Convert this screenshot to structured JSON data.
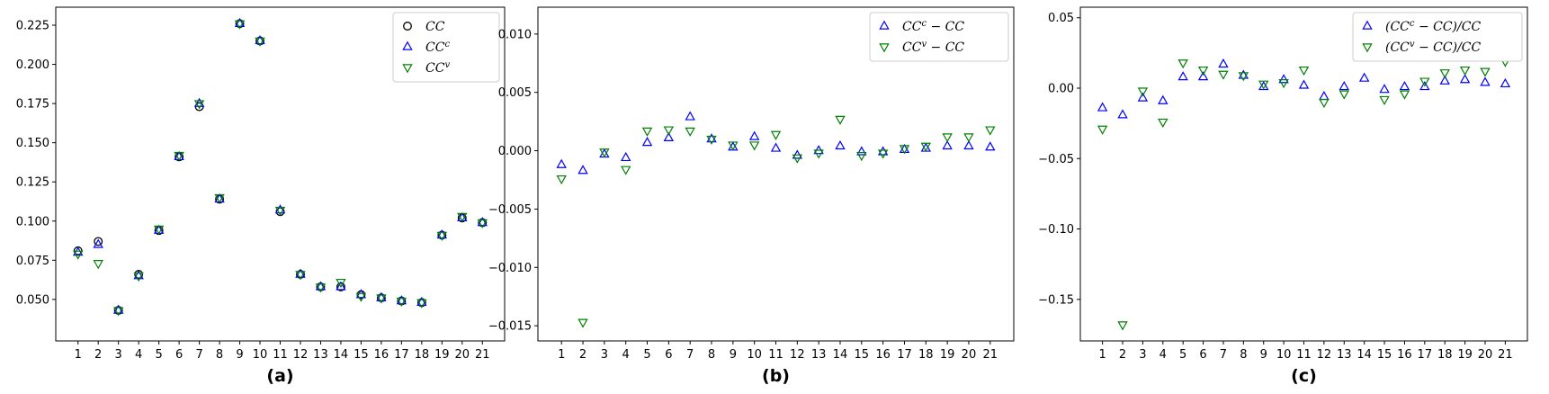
{
  "colors": {
    "cc": "#000000",
    "ccc": "#0000ff",
    "ccv": "#008000"
  },
  "chart_data": [
    {
      "type": "scatter",
      "panel_label": "(a)",
      "x": [
        1,
        2,
        3,
        4,
        5,
        6,
        7,
        8,
        9,
        10,
        11,
        12,
        13,
        14,
        15,
        16,
        17,
        18,
        19,
        20,
        21
      ],
      "xticks": [
        "1",
        "2",
        "3",
        "4",
        "5",
        "6",
        "7",
        "8",
        "9",
        "10",
        "11",
        "12",
        "13",
        "14",
        "15",
        "16",
        "17",
        "18",
        "19",
        "20",
        "21"
      ],
      "xlim": [
        -0.1,
        22.1
      ],
      "ylim": [
        0.0235,
        0.2365
      ],
      "yticks": [
        0.05,
        0.075,
        0.1,
        0.125,
        0.15,
        0.175,
        0.2,
        0.225
      ],
      "ytick_labels": [
        "0.050",
        "0.075",
        "0.100",
        "0.125",
        "0.150",
        "0.175",
        "0.200",
        "0.225"
      ],
      "legend_position": "top-right",
      "series": [
        {
          "name": "CC",
          "marker": "circle",
          "color": "#000000",
          "values": [
            0.081,
            0.087,
            0.043,
            0.066,
            0.094,
            0.141,
            0.173,
            0.114,
            0.226,
            0.215,
            0.106,
            0.066,
            0.058,
            0.058,
            0.053,
            0.051,
            0.049,
            0.048,
            0.091,
            0.102,
            0.099
          ]
        },
        {
          "name": "CC^c",
          "marker": "triangle-up",
          "color": "#0000ff",
          "values": [
            0.08,
            0.085,
            0.043,
            0.065,
            0.094,
            0.141,
            0.175,
            0.114,
            0.226,
            0.215,
            0.107,
            0.066,
            0.058,
            0.058,
            0.053,
            0.051,
            0.049,
            0.048,
            0.091,
            0.102,
            0.099
          ]
        },
        {
          "name": "CC^v",
          "marker": "triangle-down",
          "color": "#008000",
          "values": [
            0.079,
            0.073,
            0.043,
            0.065,
            0.095,
            0.142,
            0.175,
            0.115,
            0.226,
            0.215,
            0.107,
            0.066,
            0.058,
            0.061,
            0.052,
            0.051,
            0.049,
            0.048,
            0.091,
            0.103,
            0.099
          ]
        }
      ]
    },
    {
      "type": "scatter",
      "panel_label": "(b)",
      "x": [
        1,
        2,
        3,
        4,
        5,
        6,
        7,
        8,
        9,
        10,
        11,
        12,
        13,
        14,
        15,
        16,
        17,
        18,
        19,
        20,
        21
      ],
      "xticks": [
        "1",
        "2",
        "3",
        "4",
        "5",
        "6",
        "7",
        "8",
        "9",
        "10",
        "11",
        "12",
        "13",
        "14",
        "15",
        "16",
        "17",
        "18",
        "19",
        "20",
        "21"
      ],
      "xlim": [
        -0.1,
        22.1
      ],
      "ylim": [
        -0.0163,
        0.0123
      ],
      "yticks": [
        -0.015,
        -0.01,
        -0.005,
        0.0,
        0.005,
        0.01
      ],
      "ytick_labels": [
        "−0.015",
        "−0.010",
        "−0.005",
        "0.000",
        "0.005",
        "0.010"
      ],
      "legend_position": "top-right",
      "series": [
        {
          "name": "CC^c − CC",
          "marker": "triangle-up",
          "color": "#0000ff",
          "values": [
            -0.0012,
            -0.0017,
            -0.0003,
            -0.0006,
            0.0007,
            0.0011,
            0.0029,
            0.001,
            0.0003,
            0.0012,
            0.0002,
            -0.0004,
            0.0,
            0.0004,
            -0.0001,
            -0.0001,
            0.0001,
            0.0002,
            0.0004,
            0.0004,
            0.0003
          ]
        },
        {
          "name": "CC^v − CC",
          "marker": "triangle-down",
          "color": "#008000",
          "values": [
            -0.0024,
            -0.0147,
            -0.0001,
            -0.0016,
            0.0017,
            0.0018,
            0.0017,
            0.001,
            0.0005,
            0.0005,
            0.0014,
            -0.0006,
            -0.0002,
            0.0027,
            -0.0004,
            -0.0002,
            0.0002,
            0.0004,
            0.0012,
            0.0012,
            0.0018
          ]
        }
      ]
    },
    {
      "type": "scatter",
      "panel_label": "(c)",
      "x": [
        1,
        2,
        3,
        4,
        5,
        6,
        7,
        8,
        9,
        10,
        11,
        12,
        13,
        14,
        15,
        16,
        17,
        18,
        19,
        20,
        21
      ],
      "xticks": [
        "1",
        "2",
        "3",
        "4",
        "5",
        "6",
        "7",
        "8",
        "9",
        "10",
        "11",
        "12",
        "13",
        "14",
        "15",
        "16",
        "17",
        "18",
        "19",
        "20",
        "21"
      ],
      "xlim": [
        -0.1,
        22.1
      ],
      "ylim": [
        -0.1795,
        0.0575
      ],
      "yticks": [
        -0.15,
        -0.1,
        -0.05,
        0.0,
        0.05
      ],
      "ytick_labels": [
        "−0.15",
        "−0.10",
        "−0.05",
        "0.00",
        "0.05"
      ],
      "legend_position": "top-right",
      "series": [
        {
          "name": "(CC^c − CC)/CC",
          "marker": "triangle-up",
          "color": "#0000ff",
          "values": [
            -0.014,
            -0.019,
            -0.007,
            -0.009,
            0.008,
            0.008,
            0.017,
            0.009,
            0.001,
            0.006,
            0.002,
            -0.006,
            0.001,
            0.007,
            -0.001,
            0.001,
            0.001,
            0.005,
            0.006,
            0.004,
            0.003
          ]
        },
        {
          "name": "(CC^v − CC)/CC",
          "marker": "triangle-down",
          "color": "#008000",
          "values": [
            -0.029,
            -0.168,
            -0.002,
            -0.024,
            0.018,
            0.013,
            0.01,
            0.009,
            0.003,
            0.004,
            0.013,
            -0.01,
            -0.004,
            0.047,
            -0.008,
            -0.004,
            0.005,
            0.011,
            0.013,
            0.012,
            0.019
          ]
        }
      ]
    }
  ]
}
